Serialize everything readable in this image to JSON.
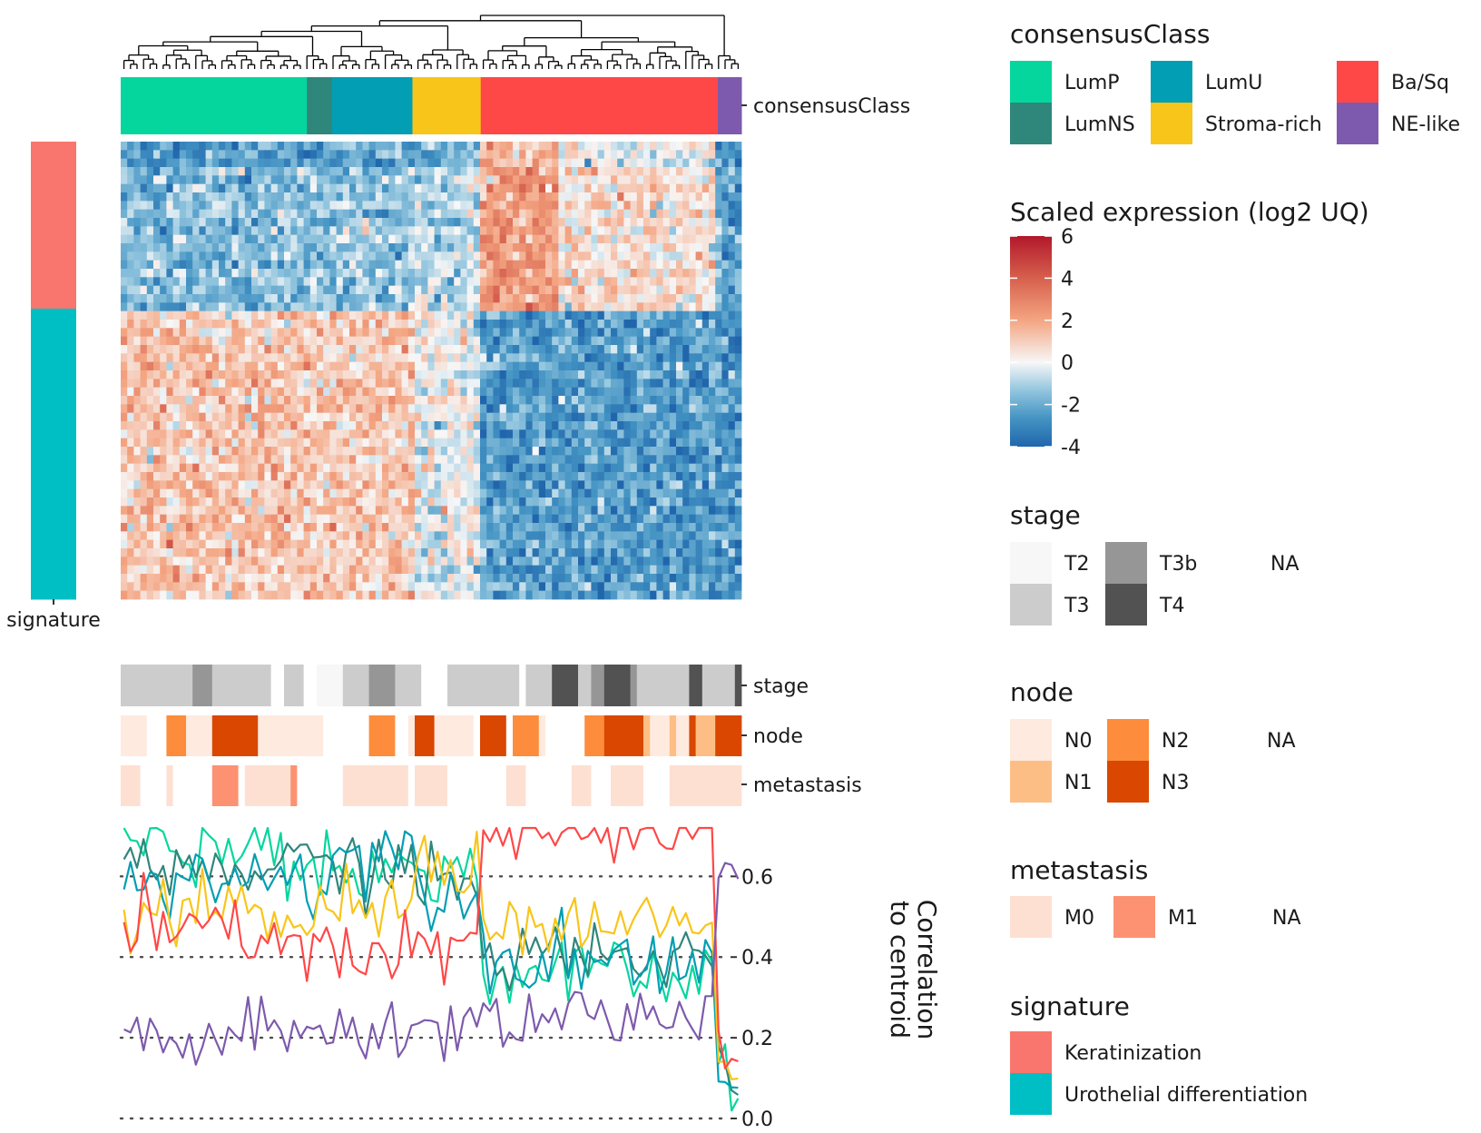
{
  "chart_data": [
    {
      "type": "heatmap",
      "description_of_axes": "rows = signature genes, columns = samples ordered by hierarchical clustering",
      "column_dendrogram": true,
      "consensusClass_annotation": {
        "label": "consensusClass",
        "segments": [
          {
            "class": "LumP",
            "start": 0,
            "end": 0.3
          },
          {
            "class": "LumNS",
            "start": 0.3,
            "end": 0.34
          },
          {
            "class": "LumU",
            "start": 0.34,
            "end": 0.47
          },
          {
            "class": "Stroma-rich",
            "start": 0.47,
            "end": 0.58
          },
          {
            "class": "Ba/Sq",
            "start": 0.58,
            "end": 0.962
          },
          {
            "class": "NE-like",
            "start": 0.962,
            "end": 1.0
          }
        ]
      },
      "row_annotation": {
        "label": "signature",
        "segments": [
          {
            "signature": "Keratinization",
            "start": 0,
            "end": 0.365
          },
          {
            "signature": "Urothelial differentiation",
            "start": 0.365,
            "end": 1.0
          }
        ]
      },
      "color_scale": {
        "title": "Scaled expression (log2 UQ)",
        "min": -4,
        "max": 6,
        "ticks": [
          6,
          4,
          2,
          0,
          -2,
          -4
        ],
        "colors": [
          "#2166ac",
          "#4393c3",
          "#92c5de",
          "#f7f7f7",
          "#f4a582",
          "#d6604d",
          "#b2182b"
        ]
      }
    },
    {
      "type": "heatmap",
      "description": "clinical annotation tracks below the heatmap",
      "tracks": [
        {
          "name": "stage",
          "levels": [
            "T2",
            "T3",
            "T3b",
            "T4",
            "NA"
          ]
        },
        {
          "name": "node",
          "levels": [
            "N0",
            "N1",
            "N2",
            "N3",
            "NA"
          ]
        },
        {
          "name": "metastasis",
          "levels": [
            "M0",
            "M1",
            "NA"
          ]
        }
      ]
    },
    {
      "type": "line",
      "ylabel": "Correlation\nto centroid",
      "ylim": [
        0,
        0.72
      ],
      "yticks": [
        "0.0",
        "0.2",
        "0.4",
        "0.6"
      ],
      "grid": "dotted horizontal at ticks",
      "series": [
        {
          "name": "LumP",
          "approx_mean_by_class": {
            "LumP": 0.68,
            "LumNS": 0.62,
            "LumU": 0.62,
            "Stroma-rich": 0.62,
            "Ba/Sq": 0.35,
            "NE-like": 0.08
          }
        },
        {
          "name": "LumNS",
          "approx_mean_by_class": {
            "LumP": 0.62,
            "LumNS": 0.63,
            "LumU": 0.63,
            "Stroma-rich": 0.58,
            "Ba/Sq": 0.4,
            "NE-like": 0.1
          }
        },
        {
          "name": "LumU",
          "approx_mean_by_class": {
            "LumP": 0.6,
            "LumNS": 0.6,
            "LumU": 0.66,
            "Stroma-rich": 0.58,
            "Ba/Sq": 0.4,
            "NE-like": 0.08
          }
        },
        {
          "name": "Stroma-rich",
          "approx_mean_by_class": {
            "LumP": 0.5,
            "LumNS": 0.5,
            "LumU": 0.52,
            "Stroma-rich": 0.64,
            "Ba/Sq": 0.48,
            "NE-like": 0.1
          }
        },
        {
          "name": "Ba/Sq",
          "approx_mean_by_class": {
            "LumP": 0.46,
            "LumNS": 0.42,
            "LumU": 0.4,
            "Stroma-rich": 0.42,
            "Ba/Sq": 0.7,
            "NE-like": 0.16
          }
        },
        {
          "name": "NE-like",
          "approx_mean_by_class": {
            "LumP": 0.2,
            "LumNS": 0.21,
            "LumU": 0.22,
            "Stroma-rich": 0.22,
            "Ba/Sq": 0.26,
            "NE-like": 0.57
          }
        }
      ]
    }
  ],
  "colors": {
    "classes": {
      "LumP": "#05d69d",
      "LumNS": "#2f867b",
      "LumU": "#029eb3",
      "Stroma-rich": "#f8c51a",
      "Ba/Sq": "#fe4848",
      "NE-like": "#7d5aad"
    },
    "signature": {
      "Keratinization": "#f8766d",
      "Urothelial differentiation": "#00bfc4"
    },
    "stage": {
      "T2": "#f7f7f7",
      "T3": "#cccccc",
      "T3b": "#969696",
      "T4": "#525252",
      "NA": "#ffffff"
    },
    "node": {
      "N0": "#feeadf",
      "N1": "#fdbe85",
      "N2": "#fd8d3c",
      "N3": "#d94701",
      "NA": "#ffffff"
    },
    "metastasis": {
      "M0": "#fee0d2",
      "M1": "#fc9272",
      "NA": "#ffffff"
    }
  },
  "labels": {
    "consensusClass": "consensusClass",
    "signature": "signature",
    "stage": "stage",
    "node": "node",
    "metastasis": "metastasis",
    "ylab_line1": "Correlation",
    "ylab_line2": "to centroid"
  },
  "legends": {
    "consensusClass": {
      "title": "consensusClass",
      "items": [
        "LumP",
        "LumNS",
        "LumU",
        "Stroma-rich",
        "Ba/Sq",
        "NE-like"
      ]
    },
    "expression": {
      "title": "Scaled expression (log2 UQ)",
      "ticks": [
        "6",
        "4",
        "2",
        "0",
        "-2",
        "-4"
      ]
    },
    "stage": {
      "title": "stage",
      "items": [
        "T2",
        "T3",
        "T3b",
        "T4",
        "NA"
      ]
    },
    "node": {
      "title": "node",
      "items": [
        "N0",
        "N1",
        "N2",
        "N3",
        "NA"
      ]
    },
    "metastasis": {
      "title": "metastasis",
      "items": [
        "M0",
        "M1",
        "NA"
      ]
    },
    "signature": {
      "title": "signature",
      "items": [
        "Keratinization",
        "Urothelial differentiation"
      ]
    }
  }
}
